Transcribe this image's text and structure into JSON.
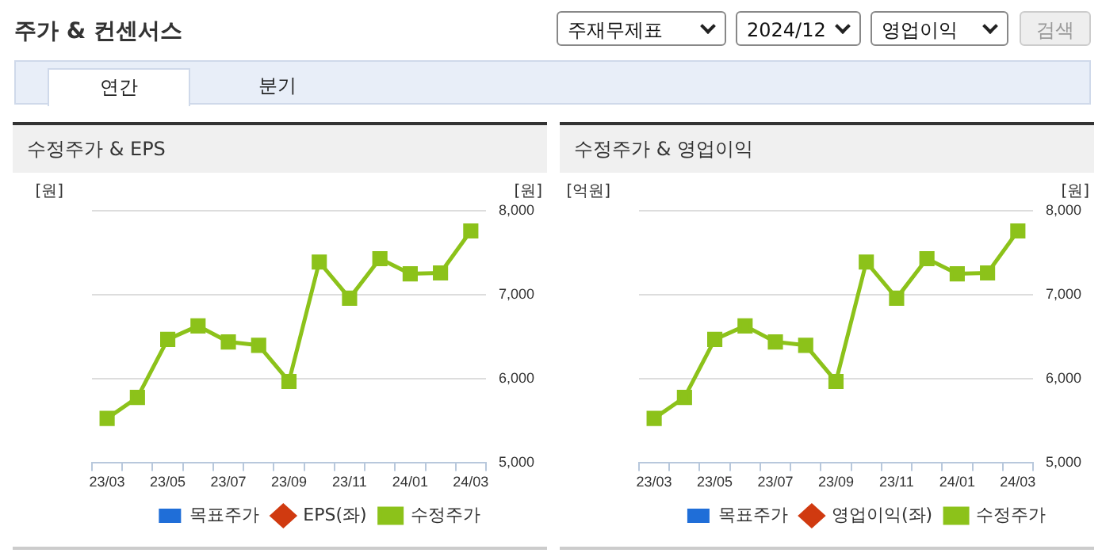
{
  "chart_data": [
    {
      "type": "line",
      "title": "수정주가 & EPS",
      "annotations": [
        "주가 & 컨센서스",
        "주재무제표",
        "2024/12",
        "영업이익",
        "검색",
        "연간",
        "분기"
      ],
      "ylabel": "[원]",
      "y2label": "[원]",
      "categories": [
        "23/03",
        null,
        "23/05",
        null,
        "23/07",
        null,
        "23/09",
        null,
        "23/11",
        null,
        "24/01",
        null,
        "24/03"
      ],
      "series": [
        {
          "name": "목표주가",
          "type": "bar",
          "color": "#1f6ed8",
          "values": [
            null,
            null,
            null,
            null,
            null,
            null,
            null,
            null,
            null,
            null,
            null,
            null,
            null
          ]
        },
        {
          "name": "EPS(좌)",
          "marker": "diamond",
          "color": "#d03a10",
          "values": [
            null,
            null,
            null,
            null,
            null,
            null,
            null,
            null,
            null,
            null,
            null,
            null,
            null
          ]
        },
        {
          "name": "수정주가",
          "marker": "square",
          "axis": "y2",
          "color": "#8cc21a",
          "values": [
            5530,
            5780,
            6470,
            6630,
            6440,
            6400,
            5970,
            7390,
            6960,
            7430,
            7250,
            7260,
            7760
          ]
        }
      ],
      "y2lim": [
        5000,
        8000
      ],
      "y2ticks": [
        {
          "value": 5000,
          "label": "5,000"
        },
        {
          "value": 6000,
          "label": "6,000"
        },
        {
          "value": 7000,
          "label": "7,000"
        },
        {
          "value": 8000,
          "label": "8,000"
        }
      ],
      "grid": "y",
      "legend": "bottom"
    },
    {
      "type": "line",
      "title": "수정주가 & 영업이익",
      "ylabel": "[억원]",
      "y2label": "[원]",
      "categories": [
        "23/03",
        null,
        "23/05",
        null,
        "23/07",
        null,
        "23/09",
        null,
        "23/11",
        null,
        "24/01",
        null,
        "24/03"
      ],
      "series": [
        {
          "name": "목표주가",
          "type": "bar",
          "color": "#1f6ed8",
          "values": [
            null,
            null,
            null,
            null,
            null,
            null,
            null,
            null,
            null,
            null,
            null,
            null,
            null
          ]
        },
        {
          "name": "영업이익(좌)",
          "marker": "diamond",
          "color": "#d03a10",
          "values": [
            null,
            null,
            null,
            null,
            null,
            null,
            null,
            null,
            null,
            null,
            null,
            null,
            null
          ]
        },
        {
          "name": "수정주가",
          "marker": "square",
          "axis": "y2",
          "color": "#8cc21a",
          "values": [
            5530,
            5780,
            6470,
            6630,
            6440,
            6400,
            5970,
            7390,
            6960,
            7430,
            7250,
            7260,
            7760
          ]
        }
      ],
      "y2lim": [
        5000,
        8000
      ],
      "y2ticks": [
        {
          "value": 5000,
          "label": "5,000"
        },
        {
          "value": 6000,
          "label": "6,000"
        },
        {
          "value": 7000,
          "label": "7,000"
        },
        {
          "value": 8000,
          "label": "8,000"
        }
      ],
      "grid": "y",
      "legend": "bottom"
    }
  ]
}
